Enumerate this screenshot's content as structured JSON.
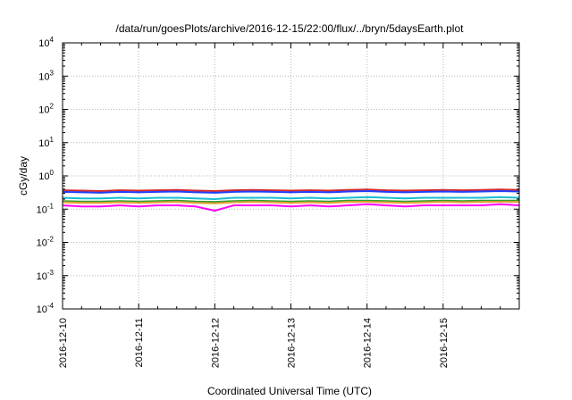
{
  "chart_data": {
    "type": "line",
    "title": "/data/run/goesPlots/archive/2016-12-15/22:00/flux/../bryn/5daysEarth.plot",
    "xlabel": "Coordinated Universal Time (UTC)",
    "ylabel": "cGy/day",
    "yscale": "log",
    "ylim": [
      0.0001,
      10000
    ],
    "y_ticks": [
      {
        "base": "10",
        "exp": "-4",
        "value": 0.0001
      },
      {
        "base": "10",
        "exp": "-3",
        "value": 0.001
      },
      {
        "base": "10",
        "exp": "-2",
        "value": 0.01
      },
      {
        "base": "10",
        "exp": "-1",
        "value": 0.1
      },
      {
        "base": "10",
        "exp": "0",
        "value": 1
      },
      {
        "base": "10",
        "exp": "1",
        "value": 10
      },
      {
        "base": "10",
        "exp": "2",
        "value": 100
      },
      {
        "base": "10",
        "exp": "3",
        "value": 1000
      },
      {
        "base": "10",
        "exp": "4",
        "value": 10000
      }
    ],
    "xlim": [
      "2016-12-10T00:00",
      "2016-12-16T00:00"
    ],
    "x_ticks": [
      "2016-12-10",
      "2016-12-11",
      "2016-12-12",
      "2016-12-13",
      "2016-12-14",
      "2016-12-15"
    ],
    "grid": true,
    "x": [
      "2016-12-10T00:00",
      "2016-12-10T06:00",
      "2016-12-10T12:00",
      "2016-12-10T18:00",
      "2016-12-11T00:00",
      "2016-12-11T06:00",
      "2016-12-11T12:00",
      "2016-12-11T18:00",
      "2016-12-12T00:00",
      "2016-12-12T06:00",
      "2016-12-12T12:00",
      "2016-12-12T18:00",
      "2016-12-13T00:00",
      "2016-12-13T06:00",
      "2016-12-13T12:00",
      "2016-12-13T18:00",
      "2016-12-14T00:00",
      "2016-12-14T06:00",
      "2016-12-14T12:00",
      "2016-12-14T18:00",
      "2016-12-15T00:00",
      "2016-12-15T06:00",
      "2016-12-15T12:00",
      "2016-12-15T18:00",
      "2016-12-16T00:00"
    ],
    "series": [
      {
        "color": "#d62728",
        "values": [
          0.37,
          0.36,
          0.35,
          0.37,
          0.36,
          0.37,
          0.38,
          0.36,
          0.35,
          0.37,
          0.38,
          0.37,
          0.36,
          0.37,
          0.36,
          0.38,
          0.39,
          0.37,
          0.36,
          0.37,
          0.38,
          0.37,
          0.38,
          0.39,
          0.38
        ]
      },
      {
        "color": "#1f3fff",
        "values": [
          0.33,
          0.32,
          0.31,
          0.33,
          0.32,
          0.33,
          0.34,
          0.32,
          0.31,
          0.33,
          0.34,
          0.33,
          0.32,
          0.33,
          0.32,
          0.34,
          0.35,
          0.33,
          0.32,
          0.33,
          0.34,
          0.33,
          0.34,
          0.35,
          0.34
        ]
      },
      {
        "color": "#17becf",
        "values": [
          0.22,
          0.21,
          0.21,
          0.22,
          0.21,
          0.22,
          0.22,
          0.21,
          0.2,
          0.22,
          0.22,
          0.22,
          0.21,
          0.22,
          0.21,
          0.22,
          0.23,
          0.22,
          0.21,
          0.22,
          0.22,
          0.22,
          0.22,
          0.23,
          0.22
        ]
      },
      {
        "color": "#2ca02c",
        "values": [
          0.175,
          0.17,
          0.17,
          0.175,
          0.17,
          0.175,
          0.18,
          0.17,
          0.165,
          0.175,
          0.18,
          0.175,
          0.17,
          0.175,
          0.17,
          0.18,
          0.18,
          0.175,
          0.17,
          0.175,
          0.18,
          0.175,
          0.18,
          0.18,
          0.18
        ]
      },
      {
        "color": "#e8a13a",
        "values": [
          0.16,
          0.155,
          0.155,
          0.16,
          0.155,
          0.16,
          0.165,
          0.155,
          0.15,
          0.16,
          0.165,
          0.16,
          0.155,
          0.16,
          0.155,
          0.165,
          0.165,
          0.16,
          0.155,
          0.16,
          0.165,
          0.16,
          0.165,
          0.165,
          0.165
        ]
      },
      {
        "color": "#ff00ff",
        "values": [
          0.13,
          0.12,
          0.12,
          0.13,
          0.12,
          0.13,
          0.13,
          0.12,
          0.09,
          0.13,
          0.13,
          0.13,
          0.12,
          0.13,
          0.12,
          0.13,
          0.14,
          0.13,
          0.12,
          0.13,
          0.13,
          0.13,
          0.13,
          0.14,
          0.13
        ]
      }
    ]
  }
}
